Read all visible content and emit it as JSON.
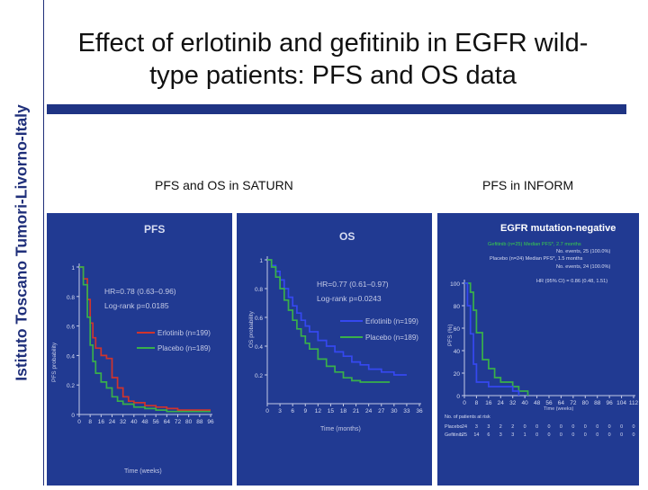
{
  "sidebar": {
    "text": "Istituto Toscano Tumori-Livorno-Italy"
  },
  "slide": {
    "title_line1": "Effect of erlotinib and gefitinib in EGFR wild-",
    "title_line2": "type patients: PFS and OS data",
    "subhead_saturn": "PFS and OS in SATURN",
    "subhead_inform": "PFS in INFORM"
  },
  "colors": {
    "panel_bg": "#213a92",
    "title_bar": "#1f3484",
    "red": "#d0342c",
    "green": "#39b04a",
    "blue": "#3548f0",
    "axis_text": "#d8ddf2"
  },
  "chart_data": [
    {
      "type": "line",
      "title": "PFS",
      "xlabel": "Time (weeks)",
      "ylabel": "PFS probability",
      "xlim": [
        0,
        96
      ],
      "ylim": [
        0,
        1.0
      ],
      "x_ticks": [
        0,
        8,
        16,
        24,
        32,
        40,
        48,
        56,
        64,
        72,
        80,
        88,
        96
      ],
      "y_ticks": [
        0,
        0.2,
        0.4,
        0.6,
        0.8,
        1.0
      ],
      "annotation_hr": "HR=0.78 (0.63–0.96)",
      "annotation_p": "Log-rank p=0.0185",
      "series": [
        {
          "name": "Erlotinib (n=199)",
          "color": "red",
          "x": [
            0,
            3,
            6,
            8,
            10,
            12,
            16,
            20,
            24,
            28,
            32,
            36,
            40,
            48,
            56,
            64,
            72,
            80,
            88,
            96
          ],
          "y": [
            1.0,
            0.92,
            0.78,
            0.62,
            0.52,
            0.45,
            0.4,
            0.38,
            0.25,
            0.18,
            0.12,
            0.09,
            0.08,
            0.06,
            0.05,
            0.04,
            0.03,
            0.03,
            0.03,
            0.03
          ]
        },
        {
          "name": "Placebo (n=189)",
          "color": "green",
          "x": [
            0,
            3,
            6,
            8,
            10,
            12,
            16,
            20,
            24,
            28,
            32,
            40,
            48,
            56,
            64,
            72,
            80,
            88,
            96
          ],
          "y": [
            1.0,
            0.88,
            0.66,
            0.47,
            0.36,
            0.28,
            0.22,
            0.18,
            0.12,
            0.09,
            0.07,
            0.05,
            0.04,
            0.03,
            0.02,
            0.02,
            0.02,
            0.02,
            0.02
          ]
        }
      ]
    },
    {
      "type": "line",
      "title": "OS",
      "xlabel": "Time (months)",
      "ylabel": "OS probability",
      "xlim": [
        0,
        36
      ],
      "ylim": [
        0,
        1.0
      ],
      "x_ticks": [
        0,
        3,
        6,
        9,
        12,
        15,
        18,
        21,
        24,
        27,
        30,
        33,
        36
      ],
      "y_ticks": [
        0.2,
        0.4,
        0.6,
        0.8,
        1.0
      ],
      "annotation_hr": "HR=0.77 (0.61–0.97)",
      "annotation_p": "Log-rank p=0.0243",
      "series": [
        {
          "name": "Erlotinib (n=199)",
          "color": "blue",
          "x": [
            0,
            1,
            2,
            3,
            4,
            5,
            6,
            7,
            8,
            9,
            10,
            12,
            14,
            16,
            18,
            20,
            22,
            24,
            27,
            30,
            33
          ],
          "y": [
            1.0,
            0.96,
            0.92,
            0.86,
            0.8,
            0.74,
            0.68,
            0.63,
            0.58,
            0.54,
            0.5,
            0.44,
            0.4,
            0.36,
            0.33,
            0.29,
            0.27,
            0.24,
            0.22,
            0.2,
            0.2
          ]
        },
        {
          "name": "Placebo (n=189)",
          "color": "green",
          "x": [
            0,
            1,
            2,
            3,
            4,
            5,
            6,
            7,
            8,
            9,
            10,
            12,
            14,
            16,
            18,
            20,
            22,
            24,
            27,
            29
          ],
          "y": [
            1.0,
            0.95,
            0.88,
            0.8,
            0.72,
            0.65,
            0.58,
            0.52,
            0.47,
            0.42,
            0.38,
            0.31,
            0.26,
            0.22,
            0.18,
            0.16,
            0.15,
            0.15,
            0.15,
            0.15
          ]
        }
      ]
    },
    {
      "type": "line",
      "title": "EGFR mutation-negative",
      "xlabel": "Time (weeks)",
      "ylabel": "PFS (%)",
      "xlim": [
        0,
        112
      ],
      "ylim": [
        0,
        100
      ],
      "x_ticks": [
        0,
        8,
        16,
        24,
        32,
        40,
        48,
        56,
        64,
        72,
        80,
        88,
        96,
        104,
        112
      ],
      "y_ticks": [
        0,
        20,
        40,
        60,
        80,
        100
      ],
      "legend_gefitinib": "Gefitinib (n=25) Median PFS*, 2.7 months",
      "legend_gefitinib_events": "No. events, 25 (100.0%)",
      "legend_placebo": "Placebo (n=24) Median PFS*, 1.5 months",
      "legend_placebo_events": "No. events, 24 (100.0%)",
      "hr_text": "HR (95% CI) = 0.86 (0.48, 1.51)",
      "at_risk_label": "No. of patients at risk",
      "at_risk": [
        {
          "name": "Placebo",
          "values": [
            24,
            3,
            3,
            2,
            2,
            0,
            0,
            0,
            0,
            0,
            0,
            0,
            0,
            0,
            0
          ]
        },
        {
          "name": "Gefitinib",
          "values": [
            25,
            14,
            6,
            3,
            3,
            1,
            0,
            0,
            0,
            0,
            0,
            0,
            0,
            0,
            0
          ]
        }
      ],
      "series": [
        {
          "name": "Gefitinib",
          "color": "green",
          "x": [
            0,
            4,
            6,
            8,
            12,
            16,
            20,
            24,
            28,
            32,
            36,
            40,
            42
          ],
          "y": [
            100,
            92,
            76,
            56,
            32,
            24,
            16,
            12,
            12,
            8,
            4,
            4,
            0
          ]
        },
        {
          "name": "Placebo",
          "color": "blue",
          "x": [
            0,
            2,
            4,
            6,
            8,
            12,
            16,
            24,
            32,
            36
          ],
          "y": [
            100,
            80,
            55,
            28,
            12,
            12,
            8,
            8,
            4,
            0
          ]
        }
      ]
    }
  ]
}
